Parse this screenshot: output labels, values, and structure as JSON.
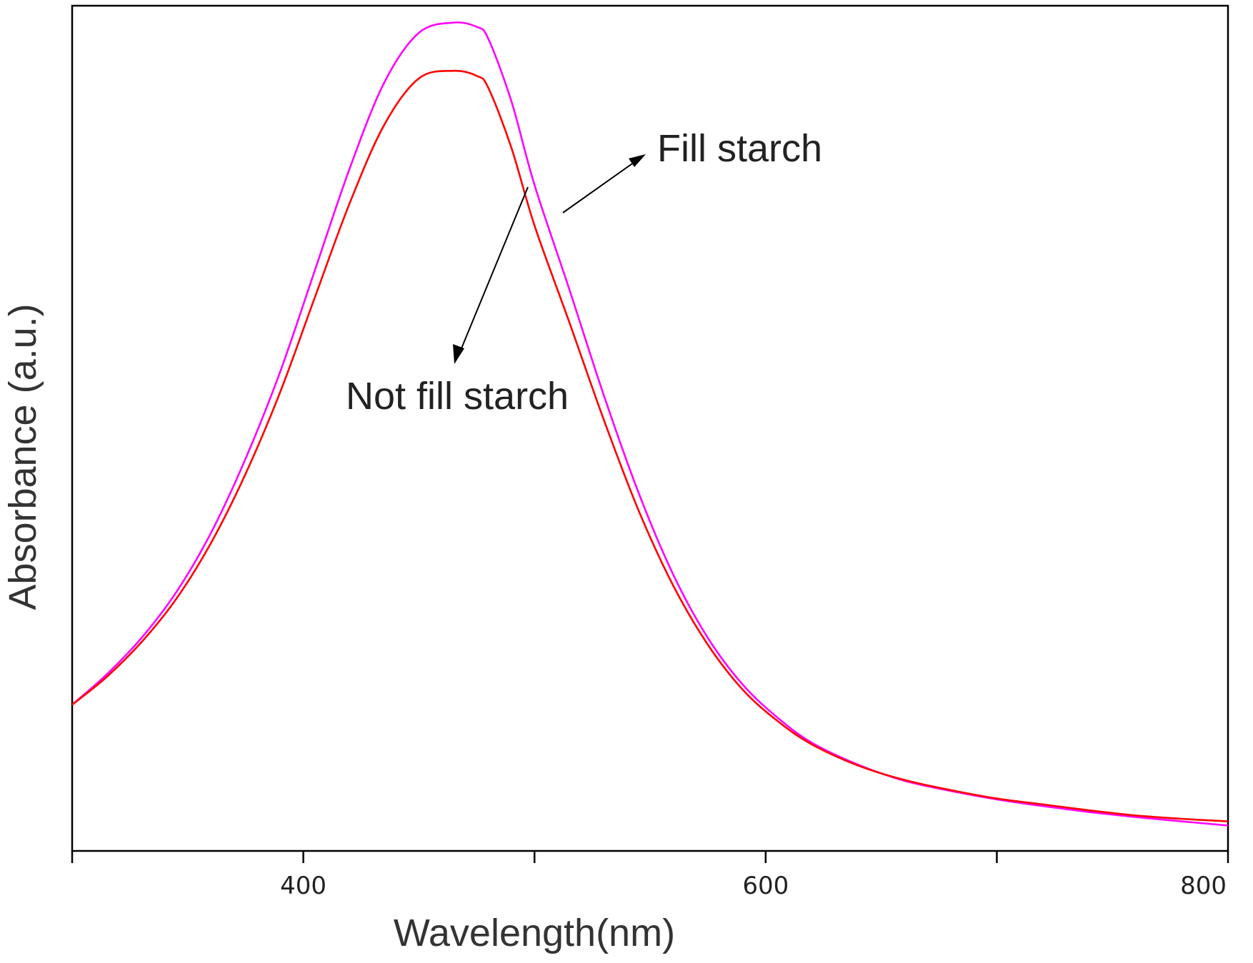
{
  "chart_data": {
    "type": "line",
    "title": "",
    "xlabel": "Wavelength(nm)",
    "ylabel": "Absorbance (a.u.)",
    "xlim": [
      300,
      800
    ],
    "ylim": [
      0,
      1.0
    ],
    "xticks": [
      400,
      600,
      800
    ],
    "x_minor_ticks": [
      300,
      500,
      700
    ],
    "y_tick_labels_shown": false,
    "grid": false,
    "legend": "none",
    "annotations": [
      {
        "text": "Fill starch",
        "series": "Fill starch"
      },
      {
        "text": "Not fill starch",
        "series": "Not fill starch"
      }
    ],
    "x": [
      300,
      315,
      330,
      345,
      360,
      375,
      390,
      405,
      420,
      435,
      450,
      465,
      475,
      480,
      490,
      500,
      515,
      530,
      545,
      560,
      575,
      590,
      605,
      620,
      640,
      660,
      680,
      700,
      720,
      740,
      760,
      780,
      800
    ],
    "series": [
      {
        "name": "Fill starch",
        "color": "#ff00ff",
        "values": [
          0.173,
          0.209,
          0.252,
          0.306,
          0.376,
          0.464,
          0.567,
          0.687,
          0.807,
          0.909,
          0.968,
          0.98,
          0.975,
          0.961,
          0.887,
          0.788,
          0.665,
          0.539,
          0.424,
          0.327,
          0.252,
          0.197,
          0.158,
          0.128,
          0.102,
          0.083,
          0.071,
          0.061,
          0.053,
          0.046,
          0.04,
          0.035,
          0.03
        ]
      },
      {
        "name": "Not fill starch",
        "color": "#ff0000",
        "values": [
          0.173,
          0.206,
          0.247,
          0.298,
          0.364,
          0.446,
          0.543,
          0.655,
          0.766,
          0.859,
          0.914,
          0.923,
          0.917,
          0.903,
          0.832,
          0.74,
          0.626,
          0.51,
          0.403,
          0.314,
          0.244,
          0.191,
          0.154,
          0.126,
          0.101,
          0.084,
          0.072,
          0.062,
          0.055,
          0.048,
          0.042,
          0.038,
          0.035
        ]
      }
    ]
  }
}
